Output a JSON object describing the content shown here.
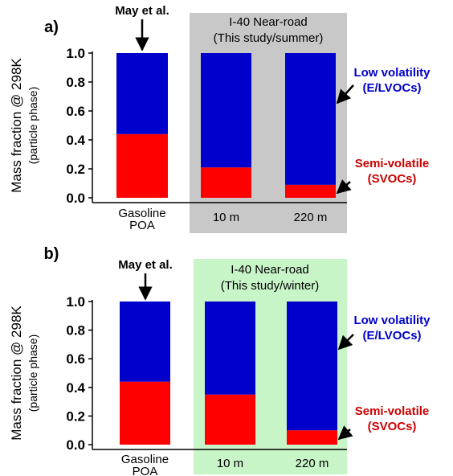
{
  "chart_data": [
    {
      "type": "bar",
      "panel_label": "a)",
      "stacked": true,
      "categories": [
        "Gasoline POA",
        "10 m",
        "220 m"
      ],
      "category_lines": [
        [
          "Gasoline",
          "POA"
        ],
        [
          "10 m"
        ],
        [
          "220 m"
        ]
      ],
      "series": [
        {
          "name": "Semi-volatile (SVOCs)",
          "values": [
            0.44,
            0.21,
            0.09
          ],
          "color": "#ff0000"
        },
        {
          "name": "Low volatility (E/LVOCs)",
          "values": [
            0.56,
            0.79,
            0.91
          ],
          "color": "#0000cc"
        }
      ],
      "ylabel": "Mass fraction @ 298K",
      "ylabel_sub": "(particle phase)",
      "ylim": [
        0.0,
        1.0
      ],
      "yticks": [
        "0.0",
        "0.2",
        "0.4",
        "0.6",
        "0.8",
        "1.0"
      ],
      "grid": false,
      "highlight": {
        "color": "#c8c8c8",
        "title_lines": [
          "I-40 Near-road",
          "(This study/summer)"
        ]
      },
      "annotations": {
        "reference": "May et al.",
        "low_label_lines": [
          "Low volatility",
          "(E/LVOCs)"
        ],
        "semi_label_lines": [
          "Semi-volatile",
          "(SVOCs)"
        ],
        "low_color": "#0000cc",
        "semi_color": "#cc0000"
      }
    },
    {
      "type": "bar",
      "panel_label": "b)",
      "stacked": true,
      "categories": [
        "Gasoline POA",
        "10 m",
        "220 m"
      ],
      "category_lines": [
        [
          "Gasoline",
          "POA"
        ],
        [
          "10 m"
        ],
        [
          "220 m"
        ]
      ],
      "series": [
        {
          "name": "Semi-volatile (SVOCs)",
          "values": [
            0.44,
            0.35,
            0.1
          ],
          "color": "#ff0000"
        },
        {
          "name": "Low volatility (E/LVOCs)",
          "values": [
            0.56,
            0.65,
            0.9
          ],
          "color": "#0000cc"
        }
      ],
      "ylabel": "Mass fraction @ 298K",
      "ylabel_sub": "(particle phase)",
      "ylim": [
        0.0,
        1.0
      ],
      "yticks": [
        "0.0",
        "0.2",
        "0.4",
        "0.6",
        "0.8",
        "1.0"
      ],
      "grid": false,
      "highlight": {
        "color": "#c8f5c8",
        "title_lines": [
          "I-40 Near-road",
          "(This study/winter)"
        ]
      },
      "annotations": {
        "reference": "May et al.",
        "low_label_lines": [
          "Low volatility",
          "(E/LVOCs)"
        ],
        "semi_label_lines": [
          "Semi-volatile",
          "(SVOCs)"
        ],
        "low_color": "#0000cc",
        "semi_color": "#cc0000"
      }
    }
  ]
}
